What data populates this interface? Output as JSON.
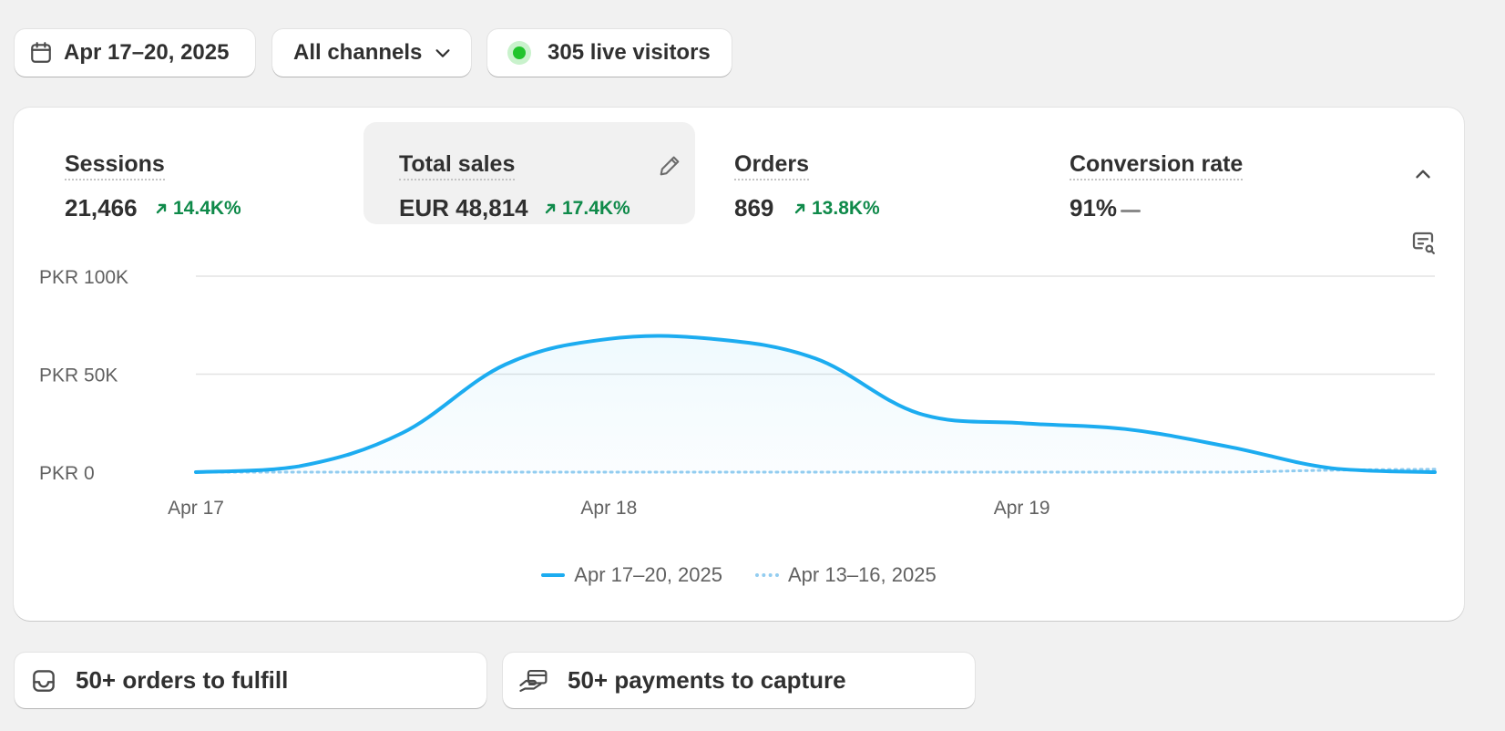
{
  "toolbar": {
    "date_range": "Apr 17–20, 2025",
    "channels": "All channels",
    "live_visitors": "305 live visitors"
  },
  "metrics": [
    {
      "title": "Sessions",
      "value": "21,466",
      "delta": "14.4K%",
      "trend": "up"
    },
    {
      "title": "Total sales",
      "value": "EUR 48,814",
      "delta": "17.4K%",
      "trend": "up",
      "selected": true
    },
    {
      "title": "Orders",
      "value": "869",
      "delta": "13.8K%",
      "trend": "up"
    },
    {
      "title": "Conversion rate",
      "value": "91%",
      "delta": "",
      "trend": "flat"
    }
  ],
  "chart_data": {
    "type": "area",
    "y_ticks": [
      "PKR 100K",
      "PKR 50K",
      "PKR 0"
    ],
    "ylim": [
      0,
      100000
    ],
    "x_ticks": [
      "Apr 17",
      "Apr 18",
      "Apr 19"
    ],
    "x": [
      0,
      6,
      12,
      18,
      24,
      30,
      36,
      42,
      48,
      54,
      60,
      66,
      72
    ],
    "series": [
      {
        "name": "Apr 17–20, 2025",
        "style": "solid",
        "color": "#1cacf0",
        "values": [
          0,
          3000,
          20000,
          55000,
          68000,
          68000,
          58000,
          30000,
          25000,
          22000,
          13000,
          2000,
          0
        ]
      },
      {
        "name": "Apr 13–16, 2025",
        "style": "dotted",
        "color": "#93cdf0",
        "values": [
          0,
          0,
          0,
          0,
          0,
          0,
          0,
          0,
          0,
          0,
          0,
          1000,
          1500
        ]
      }
    ],
    "grid": true,
    "legend": "bottom-center"
  },
  "tasks": {
    "orders": "50+ orders to fulfill",
    "payments": "50+ payments to capture"
  },
  "icons": {
    "calendar": "calendar-icon",
    "chevron": "chevron-down-icon",
    "live": "live-dot-icon",
    "edit": "pencil-icon",
    "collapse": "chevron-up-icon",
    "insight": "chart-search-icon",
    "inbox": "inbox-icon",
    "payment": "hand-card-icon"
  },
  "colors": {
    "accent": "#1cacf0",
    "positive": "#0f8a4a",
    "live": "#21c42c"
  }
}
